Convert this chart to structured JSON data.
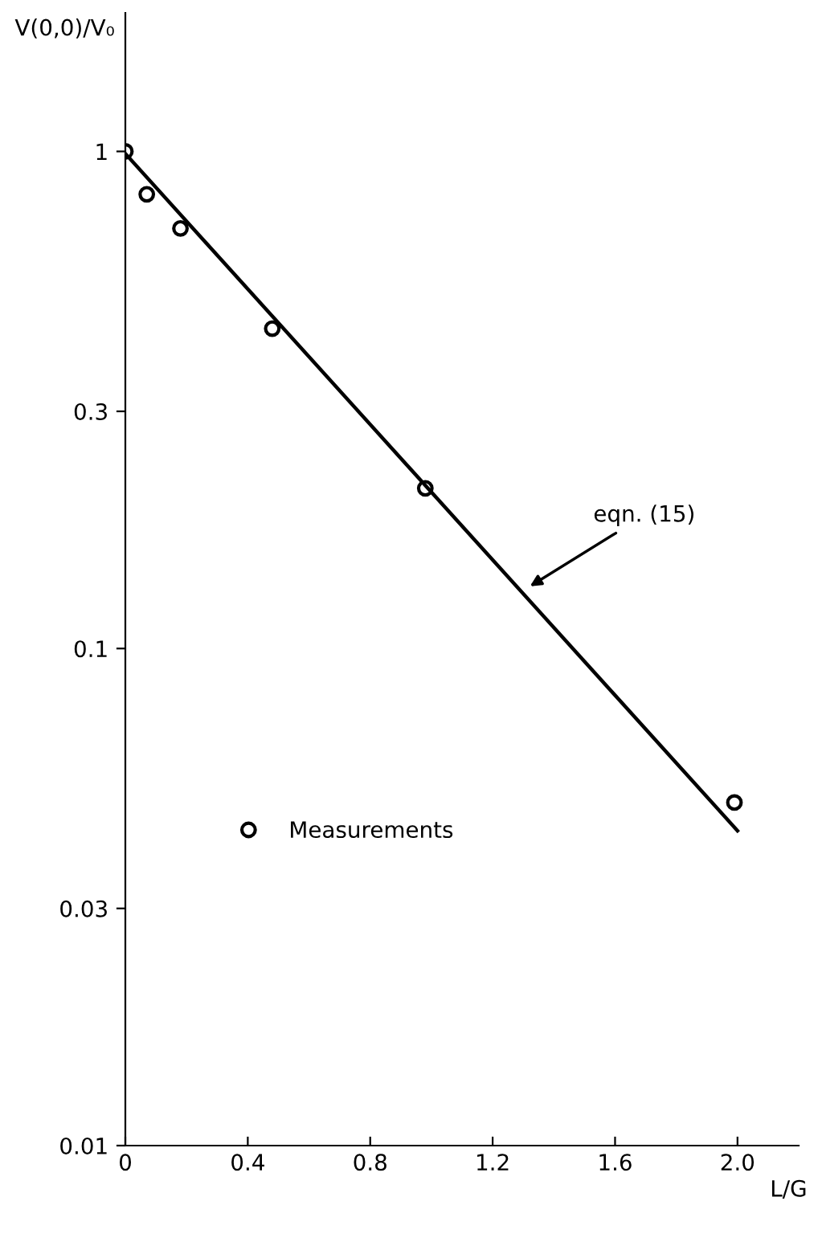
{
  "chart_data": {
    "type": "scatter",
    "xlabel": "L/G",
    "ylabel": "V(0,0)/V₀",
    "series": [
      {
        "name": "Measurements",
        "color": "#000000",
        "x": [
          0,
          0.07,
          0.18,
          0.48,
          0.98,
          1.99
        ],
        "values": [
          1.0,
          0.82,
          0.7,
          0.44,
          0.21,
          0.049
        ]
      },
      {
        "type": "line",
        "marker": "none",
        "color": "#000000",
        "x": [
          0,
          2.0
        ],
        "values": [
          0.99,
          0.043
        ]
      }
    ],
    "annotations": [
      {
        "text": "eqn. (15)",
        "x": 1.31,
        "y": 0.132
      }
    ],
    "log": true,
    "marker": "circle",
    "legend": "bottom left",
    "xlim": [
      0,
      2.2
    ],
    "ylim": [
      0.01,
      1.9
    ],
    "xticks": [
      0,
      0.4,
      0.8,
      1.2,
      1.6,
      {
        "value": 2.0,
        "label": "2.0"
      }
    ],
    "yticks": [
      0.01,
      0.03,
      0.1,
      0.3,
      1
    ],
    "grid": false
  }
}
